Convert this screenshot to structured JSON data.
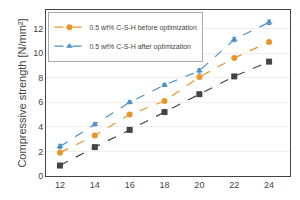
{
  "chart_data": {
    "type": "line",
    "ylabel": "Compressive strength [N/mm²]",
    "x": [
      12,
      14,
      16,
      18,
      20,
      22,
      24
    ],
    "series": [
      {
        "color": "#444444",
        "marker": "square",
        "line_style": "dashed",
        "values": [
          0.85,
          2.35,
          3.75,
          5.2,
          6.65,
          8.1,
          9.3
        ],
        "errors": [
          0.08,
          0.08,
          0.08,
          0.08,
          0.08,
          0.08,
          0.12
        ]
      },
      {
        "name": "0.5 wt% C-S-H before optimization",
        "color": "#E8962A",
        "marker": "circle",
        "line_style": "dashed",
        "values": [
          1.9,
          3.3,
          5.0,
          6.1,
          8.05,
          9.6,
          10.9
        ],
        "errors": [
          0.12,
          0.12,
          0.12,
          0.12,
          0.12,
          0.12,
          0.12
        ]
      },
      {
        "name": "0.5 wt% C-S-H after optimization",
        "color": "#4A90C8",
        "marker": "triangle-up",
        "line_style": "dashed",
        "values": [
          2.4,
          4.2,
          6.0,
          7.4,
          8.55,
          11.1,
          12.5
        ],
        "errors": [
          0.18,
          0.12,
          0.12,
          0.12,
          0.18,
          0.18,
          0.18
        ]
      }
    ],
    "xlim": [
      11.2,
      25.2
    ],
    "ylim": [
      0,
      13.5
    ],
    "xticks": [
      12,
      14,
      16,
      18,
      20,
      22,
      24
    ],
    "yticks": [
      0,
      2,
      4,
      6,
      8,
      10,
      12
    ],
    "grid": "y",
    "legend": "upper left"
  }
}
